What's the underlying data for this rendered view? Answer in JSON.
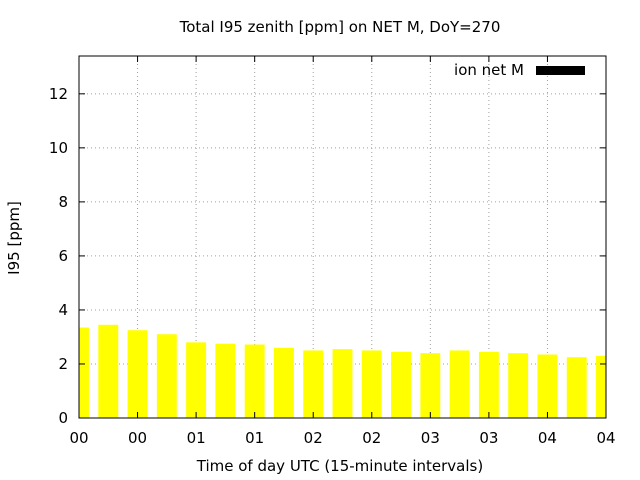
{
  "chart_data": {
    "type": "bar",
    "title": "Total I95 zenith [ppm] on NET M, DoY=270",
    "xlabel": "Time of day UTC (15-minute intervals)",
    "ylabel": "I95 [ppm]",
    "ylim": [
      0,
      13.4
    ],
    "yticks": [
      0,
      2,
      4,
      6,
      8,
      10,
      12
    ],
    "xticks": [
      {
        "t": 0,
        "label": "00"
      },
      {
        "t": 0.5,
        "label": "00"
      },
      {
        "t": 1,
        "label": "01"
      },
      {
        "t": 1.5,
        "label": "01"
      },
      {
        "t": 2,
        "label": "02"
      },
      {
        "t": 2.5,
        "label": "02"
      },
      {
        "t": 3,
        "label": "03"
      },
      {
        "t": 3.5,
        "label": "03"
      },
      {
        "t": 4,
        "label": "04"
      },
      {
        "t": 4.5,
        "label": "04"
      }
    ],
    "xlim_hours": [
      0,
      4.5
    ],
    "grid": true,
    "legend": {
      "position": "top-right"
    },
    "series": [
      {
        "name": "ion net M",
        "legend_color": "#000000",
        "bar_color": "#ffff00",
        "x_hours": [
          0,
          0.25,
          0.5,
          0.75,
          1.0,
          1.25,
          1.5,
          1.75,
          2.0,
          2.25,
          2.5,
          2.75,
          3.0,
          3.25,
          3.5,
          3.75,
          4.0,
          4.25,
          4.5
        ],
        "values": [
          3.35,
          3.45,
          3.25,
          3.1,
          2.8,
          2.75,
          2.72,
          2.6,
          2.5,
          2.55,
          2.5,
          2.45,
          2.4,
          2.5,
          2.45,
          2.4,
          2.35,
          2.25,
          2.3
        ]
      }
    ]
  }
}
